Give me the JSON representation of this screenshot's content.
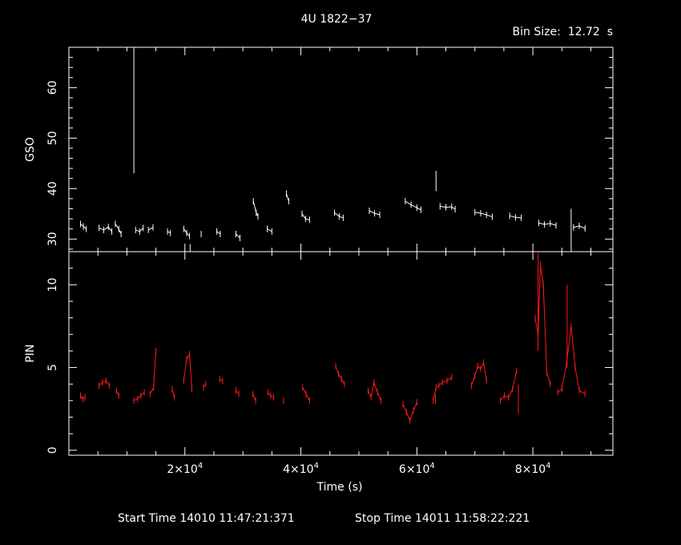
{
  "chart_data": {
    "type": "scatter",
    "title": "4U 1822−37",
    "bin_size_label": "Bin Size:  12.72  s",
    "xlabel": "Time (s)",
    "x_ticks": [
      {
        "value": 20000,
        "mantissa": "2",
        "exp": "4"
      },
      {
        "value": 40000,
        "mantissa": "4",
        "exp": "4"
      },
      {
        "value": 60000,
        "mantissa": "6",
        "exp": "4"
      },
      {
        "value": 80000,
        "mantissa": "8",
        "exp": "4"
      }
    ],
    "xlim": [
      0,
      93800
    ],
    "footer_start": "Start Time 14010 11:47:21:371",
    "footer_stop": "Stop Time 14011 11:58:22:221",
    "panels": [
      {
        "name": "GSO",
        "ylabel": "GSO",
        "color": "#ffffff",
        "ylim": [
          27.5,
          68
        ],
        "y_ticks": [
          30,
          40,
          50,
          60
        ],
        "segments": [
          [
            [
              2000,
              33
            ],
            [
              2500,
              32.5
            ],
            [
              3000,
              32
            ]
          ],
          [
            [
              5200,
              32.2
            ],
            [
              6000,
              31.8
            ],
            [
              6800,
              32.4
            ],
            [
              7400,
              31.5
            ]
          ],
          [
            [
              8000,
              33
            ],
            [
              8600,
              32
            ],
            [
              9000,
              31
            ]
          ],
          [
            [
              11500,
              31.8
            ],
            [
              12200,
              31.5
            ],
            [
              12800,
              32.2
            ]
          ],
          [
            [
              13700,
              31.8
            ],
            [
              14500,
              32.3
            ]
          ],
          [
            [
              17000,
              31.5
            ],
            [
              17500,
              31.2
            ]
          ],
          [
            [
              19800,
              32
            ],
            [
              20300,
              31.2
            ],
            [
              20800,
              30.6
            ]
          ],
          [
            [
              22800,
              31
            ]
          ],
          [
            [
              25500,
              31.5
            ],
            [
              26100,
              31
            ]
          ],
          [
            [
              28800,
              31
            ],
            [
              29500,
              30.2
            ]
          ],
          [
            [
              31800,
              37.5
            ],
            [
              32300,
              35.2
            ],
            [
              32600,
              34.5
            ]
          ],
          [
            [
              34200,
              32
            ],
            [
              35000,
              31.5
            ]
          ],
          [
            [
              37500,
              39
            ],
            [
              37900,
              37.5
            ]
          ],
          [
            [
              40200,
              35
            ],
            [
              40800,
              34
            ],
            [
              41500,
              33.8
            ]
          ],
          [
            [
              45800,
              35.2
            ],
            [
              46600,
              34.5
            ],
            [
              47300,
              34.2
            ]
          ],
          [
            [
              51800,
              35.6
            ],
            [
              52700,
              35.1
            ],
            [
              53600,
              34.8
            ]
          ],
          [
            [
              58000,
              37.5
            ],
            [
              59000,
              36.8
            ],
            [
              60000,
              36.2
            ],
            [
              60700,
              35.8
            ]
          ],
          [
            [
              64000,
              36.5
            ],
            [
              65000,
              36.3
            ],
            [
              66000,
              36.4
            ],
            [
              66600,
              35.9
            ]
          ],
          [
            [
              70000,
              35.3
            ],
            [
              71000,
              35.1
            ],
            [
              72000,
              34.8
            ],
            [
              73000,
              34.4
            ]
          ],
          [
            [
              76000,
              34.6
            ],
            [
              77000,
              34.3
            ],
            [
              78000,
              34.2
            ]
          ],
          [
            [
              81000,
              33.2
            ],
            [
              82000,
              32.9
            ],
            [
              83000,
              33.1
            ],
            [
              84000,
              32.7
            ]
          ],
          [
            [
              87000,
              32.3
            ],
            [
              88000,
              32.6
            ],
            [
              89000,
              32.1
            ]
          ]
        ],
        "spikes": [
          [
            11200,
            43,
            68
          ],
          [
            63300,
            39.5,
            43.5
          ],
          [
            86600,
            27.5,
            36
          ],
          [
            20900,
            27.5,
            29
          ]
        ]
      },
      {
        "name": "PIN",
        "ylabel": "PIN",
        "color": "#ff1a1a",
        "ylim": [
          -0.3,
          12
        ],
        "y_ticks": [
          0,
          5,
          10
        ],
        "segments": [
          [
            [
              2000,
              3.3
            ],
            [
              2400,
              3.1
            ],
            [
              2800,
              3.2
            ]
          ],
          [
            [
              5200,
              3.9
            ],
            [
              5800,
              4.1
            ],
            [
              6400,
              4.2
            ],
            [
              7000,
              3.9
            ]
          ],
          [
            [
              8200,
              3.6
            ],
            [
              8600,
              3.3
            ]
          ],
          [
            [
              11200,
              3.0
            ],
            [
              11800,
              3.1
            ],
            [
              12400,
              3.3
            ],
            [
              13000,
              3.5
            ]
          ],
          [
            [
              14000,
              3.4
            ],
            [
              14600,
              3.8
            ],
            [
              15000,
              6.0
            ]
          ],
          [
            [
              17800,
              3.7
            ],
            [
              18200,
              3.2
            ]
          ],
          [
            [
              19800,
              4.2
            ],
            [
              20300,
              5.5
            ],
            [
              20800,
              5.8
            ],
            [
              21200,
              3.7
            ]
          ],
          [
            [
              23200,
              3.8
            ],
            [
              23600,
              4.0
            ]
          ],
          [
            [
              26000,
              4.3
            ],
            [
              26500,
              4.2
            ]
          ],
          [
            [
              28800,
              3.6
            ],
            [
              29300,
              3.4
            ]
          ],
          [
            [
              31700,
              3.4
            ],
            [
              32200,
              3.0
            ]
          ],
          [
            [
              34300,
              3.5
            ],
            [
              34800,
              3.3
            ],
            [
              35300,
              3.2
            ]
          ],
          [
            [
              37000,
              3.0
            ]
          ],
          [
            [
              40300,
              3.8
            ],
            [
              40900,
              3.4
            ],
            [
              41500,
              3.0
            ]
          ],
          [
            [
              46000,
              5.1
            ],
            [
              46500,
              4.6
            ],
            [
              47000,
              4.3
            ],
            [
              47500,
              4.0
            ]
          ],
          [
            [
              51600,
              3.6
            ],
            [
              52100,
              3.2
            ],
            [
              52600,
              4.1
            ],
            [
              53200,
              3.5
            ],
            [
              53800,
              3.0
            ]
          ],
          [
            [
              57600,
              2.8
            ],
            [
              58200,
              2.3
            ],
            [
              58800,
              1.8
            ],
            [
              59400,
              2.4
            ],
            [
              60000,
              2.9
            ]
          ],
          [
            [
              62800,
              3.0
            ],
            [
              63300,
              3.8
            ],
            [
              63800,
              3.9
            ],
            [
              64400,
              4.1
            ],
            [
              65200,
              4.2
            ],
            [
              66000,
              4.4
            ]
          ],
          [
            [
              69400,
              3.9
            ],
            [
              70000,
              4.5
            ],
            [
              70500,
              5.1
            ],
            [
              71000,
              4.9
            ],
            [
              71500,
              5.3
            ],
            [
              72000,
              4.2
            ]
          ],
          [
            [
              74400,
              3.0
            ],
            [
              75100,
              3.3
            ],
            [
              75800,
              3.2
            ],
            [
              76500,
              3.7
            ],
            [
              77200,
              4.8
            ]
          ],
          [
            [
              80400,
              8.0
            ],
            [
              80900,
              7.0
            ],
            [
              81300,
              11.2
            ],
            [
              81800,
              10.0
            ],
            [
              82400,
              4.7
            ],
            [
              83000,
              4.0
            ]
          ],
          [
            [
              84300,
              3.5
            ],
            [
              85000,
              3.7
            ],
            [
              85800,
              5.2
            ],
            [
              86600,
              7.5
            ],
            [
              87300,
              5.0
            ],
            [
              88000,
              3.6
            ],
            [
              89000,
              3.4
            ]
          ]
        ],
        "spikes": [
          [
            85900,
            5.0,
            10.0
          ],
          [
            80900,
            6.0,
            12.0
          ],
          [
            63200,
            2.8,
            3.4
          ],
          [
            77500,
            2.2,
            4.0
          ]
        ]
      }
    ]
  }
}
